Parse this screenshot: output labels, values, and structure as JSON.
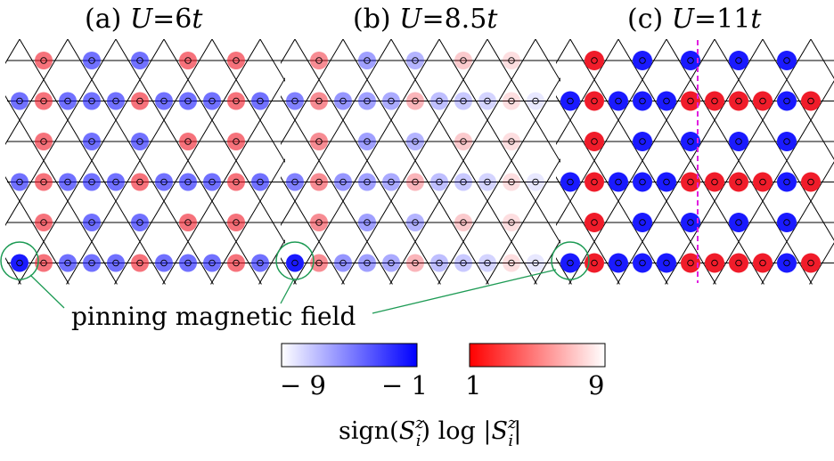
{
  "panels": [
    {
      "label": "(a) ",
      "var": "U",
      "eq": "=6",
      "unit": "t"
    },
    {
      "label": "(b) ",
      "var": "U",
      "eq": "=8.5",
      "unit": "t"
    },
    {
      "label": "(c) ",
      "var": "U",
      "eq": "=11",
      "unit": "t"
    }
  ],
  "annotation": "pinning magnetic field",
  "colorbar": {
    "neg_min": "− 9",
    "neg_max": "− 1",
    "pos_min": "1",
    "pos_max": "9",
    "label_prefix": "sign(",
    "label_S": "S",
    "label_sup": "z",
    "label_sub": "i",
    "label_mid": ") log |",
    "label_end": "|",
    "neg_color": "#0000ff",
    "pos_color": "#ff0000"
  },
  "colors": {
    "blue": "#1a1aff",
    "red": "#f01c2a",
    "lattice": "#000000",
    "pin_circle": "#1e9b55",
    "domain_wall": "#e020e0"
  }
}
